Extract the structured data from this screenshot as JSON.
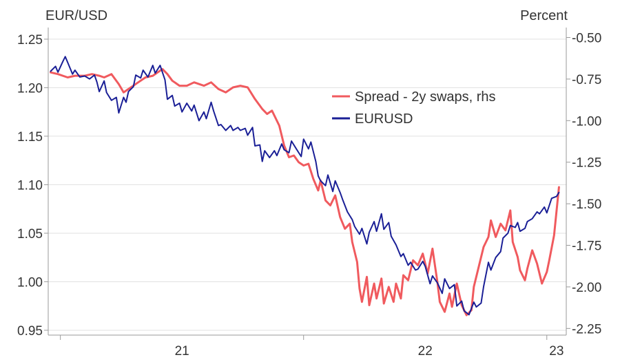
{
  "chart_data": {
    "type": "line",
    "left_axis_title": "EUR/USD",
    "right_axis_title": "Percent",
    "ylim_left": [
      0.945,
      1.262
    ],
    "ylim_right": [
      -2.29,
      -0.44
    ],
    "left_ticks": [
      {
        "value": 1.25,
        "label": "1.25"
      },
      {
        "value": 1.2,
        "label": "1.20"
      },
      {
        "value": 1.15,
        "label": "1.15"
      },
      {
        "value": 1.1,
        "label": "1.10"
      },
      {
        "value": 1.05,
        "label": "1.05"
      },
      {
        "value": 1.0,
        "label": "1.00"
      },
      {
        "value": 0.95,
        "label": "0.95"
      }
    ],
    "right_ticks": [
      {
        "value": -0.5,
        "label": "-0.50"
      },
      {
        "value": -0.75,
        "label": "-0.75"
      },
      {
        "value": -1.0,
        "label": "-1.00"
      },
      {
        "value": -1.25,
        "label": "-1.25"
      },
      {
        "value": -1.5,
        "label": "-1.50"
      },
      {
        "value": -1.75,
        "label": "-1.75"
      },
      {
        "value": -2.0,
        "label": "-2.00"
      },
      {
        "value": -2.25,
        "label": "-2.25"
      }
    ],
    "x_domain": [
      2020.95,
      2023.08
    ],
    "x_ticks": [
      2021,
      2022,
      2023
    ],
    "x_year_boundaries": [
      2021,
      2022,
      2023
    ],
    "x_tick_labels": [
      {
        "value": 2021.5,
        "label": "21"
      },
      {
        "value": 2022.5,
        "label": "22"
      },
      {
        "value": 2023.5,
        "label": "23"
      }
    ],
    "grid": true,
    "legend_position": "upper-right",
    "series": [
      {
        "name": "Spread - 2y swaps, rhs",
        "axis": "right",
        "color": "#f05a5e",
        "points": [
          [
            2020.96,
            -0.71
          ],
          [
            2020.99,
            -0.72
          ],
          [
            2021.03,
            -0.74
          ],
          [
            2021.06,
            -0.73
          ],
          [
            2021.1,
            -0.73
          ],
          [
            2021.13,
            -0.72
          ],
          [
            2021.16,
            -0.73
          ],
          [
            2021.18,
            -0.74
          ],
          [
            2021.21,
            -0.72
          ],
          [
            2021.24,
            -0.78
          ],
          [
            2021.26,
            -0.83
          ],
          [
            2021.29,
            -0.8
          ],
          [
            2021.32,
            -0.77
          ],
          [
            2021.35,
            -0.74
          ],
          [
            2021.38,
            -0.73
          ],
          [
            2021.4,
            -0.71
          ],
          [
            2021.42,
            -0.69
          ],
          [
            2021.44,
            -0.72
          ],
          [
            2021.46,
            -0.76
          ],
          [
            2021.49,
            -0.79
          ],
          [
            2021.52,
            -0.79
          ],
          [
            2021.55,
            -0.77
          ],
          [
            2021.59,
            -0.79
          ],
          [
            2021.62,
            -0.77
          ],
          [
            2021.65,
            -0.81
          ],
          [
            2021.68,
            -0.83
          ],
          [
            2021.71,
            -0.8
          ],
          [
            2021.74,
            -0.79
          ],
          [
            2021.77,
            -0.8
          ],
          [
            2021.8,
            -0.87
          ],
          [
            2021.83,
            -0.93
          ],
          [
            2021.85,
            -0.96
          ],
          [
            2021.87,
            -0.94
          ],
          [
            2021.9,
            -1.03
          ],
          [
            2021.92,
            -1.15
          ],
          [
            2021.94,
            -1.22
          ],
          [
            2021.96,
            -1.21
          ],
          [
            2021.98,
            -1.25
          ],
          [
            2022.0,
            -1.27
          ],
          [
            2022.02,
            -1.26
          ],
          [
            2022.04,
            -1.35
          ],
          [
            2022.06,
            -1.42
          ],
          [
            2022.07,
            -1.36
          ],
          [
            2022.09,
            -1.48
          ],
          [
            2022.11,
            -1.51
          ],
          [
            2022.13,
            -1.45
          ],
          [
            2022.15,
            -1.58
          ],
          [
            2022.17,
            -1.65
          ],
          [
            2022.19,
            -1.62
          ],
          [
            2022.2,
            -1.73
          ],
          [
            2022.22,
            -1.85
          ],
          [
            2022.23,
            -2.01
          ],
          [
            2022.24,
            -2.09
          ],
          [
            2022.26,
            -1.94
          ],
          [
            2022.27,
            -2.11
          ],
          [
            2022.29,
            -1.98
          ],
          [
            2022.3,
            -2.07
          ],
          [
            2022.32,
            -1.95
          ],
          [
            2022.33,
            -2.1
          ],
          [
            2022.35,
            -2.0
          ],
          [
            2022.37,
            -2.09
          ],
          [
            2022.38,
            -1.98
          ],
          [
            2022.4,
            -2.07
          ],
          [
            2022.41,
            -1.93
          ],
          [
            2022.43,
            -1.96
          ],
          [
            2022.45,
            -1.84
          ],
          [
            2022.47,
            -1.87
          ],
          [
            2022.49,
            -1.8
          ],
          [
            2022.51,
            -1.92
          ],
          [
            2022.53,
            -1.77
          ],
          [
            2022.55,
            -1.97
          ],
          [
            2022.56,
            -2.09
          ],
          [
            2022.58,
            -2.15
          ],
          [
            2022.6,
            -2.04
          ],
          [
            2022.61,
            -2.12
          ],
          [
            2022.63,
            -1.98
          ],
          [
            2022.65,
            -2.11
          ],
          [
            2022.67,
            -2.17
          ],
          [
            2022.69,
            -2.14
          ],
          [
            2022.7,
            -2.0
          ],
          [
            2022.72,
            -1.88
          ],
          [
            2022.74,
            -1.76
          ],
          [
            2022.76,
            -1.7
          ],
          [
            2022.77,
            -1.6
          ],
          [
            2022.79,
            -1.7
          ],
          [
            2022.81,
            -1.62
          ],
          [
            2022.83,
            -1.66
          ],
          [
            2022.85,
            -1.54
          ],
          [
            2022.86,
            -1.73
          ],
          [
            2022.88,
            -1.82
          ],
          [
            2022.89,
            -1.9
          ],
          [
            2022.91,
            -1.96
          ],
          [
            2022.92,
            -1.89
          ],
          [
            2022.94,
            -1.78
          ],
          [
            2022.96,
            -1.86
          ],
          [
            2022.98,
            -1.98
          ],
          [
            2023.0,
            -1.91
          ],
          [
            2023.01,
            -1.84
          ],
          [
            2023.03,
            -1.69
          ],
          [
            2023.05,
            -1.4
          ]
        ]
      },
      {
        "name": "EURUSD",
        "axis": "left",
        "color": "#1a1f96",
        "points": [
          [
            2020.96,
            1.217
          ],
          [
            2020.98,
            1.222
          ],
          [
            2020.99,
            1.216
          ],
          [
            2021.01,
            1.227
          ],
          [
            2021.02,
            1.232
          ],
          [
            2021.04,
            1.22
          ],
          [
            2021.05,
            1.214
          ],
          [
            2021.06,
            1.218
          ],
          [
            2021.08,
            1.211
          ],
          [
            2021.1,
            1.212
          ],
          [
            2021.12,
            1.209
          ],
          [
            2021.14,
            1.213
          ],
          [
            2021.15,
            1.206
          ],
          [
            2021.16,
            1.196
          ],
          [
            2021.18,
            1.207
          ],
          [
            2021.19,
            1.195
          ],
          [
            2021.21,
            1.187
          ],
          [
            2021.23,
            1.19
          ],
          [
            2021.24,
            1.174
          ],
          [
            2021.26,
            1.19
          ],
          [
            2021.27,
            1.185
          ],
          [
            2021.28,
            1.196
          ],
          [
            2021.3,
            1.201
          ],
          [
            2021.31,
            1.213
          ],
          [
            2021.33,
            1.21
          ],
          [
            2021.34,
            1.218
          ],
          [
            2021.36,
            1.211
          ],
          [
            2021.38,
            1.223
          ],
          [
            2021.39,
            1.215
          ],
          [
            2021.41,
            1.223
          ],
          [
            2021.43,
            1.208
          ],
          [
            2021.44,
            1.188
          ],
          [
            2021.46,
            1.192
          ],
          [
            2021.47,
            1.181
          ],
          [
            2021.49,
            1.184
          ],
          [
            2021.5,
            1.175
          ],
          [
            2021.52,
            1.184
          ],
          [
            2021.54,
            1.176
          ],
          [
            2021.55,
            1.182
          ],
          [
            2021.57,
            1.166
          ],
          [
            2021.59,
            1.175
          ],
          [
            2021.6,
            1.168
          ],
          [
            2021.62,
            1.185
          ],
          [
            2021.63,
            1.176
          ],
          [
            2021.65,
            1.161
          ],
          [
            2021.66,
            1.162
          ],
          [
            2021.68,
            1.156
          ],
          [
            2021.7,
            1.161
          ],
          [
            2021.71,
            1.156
          ],
          [
            2021.73,
            1.159
          ],
          [
            2021.74,
            1.156
          ],
          [
            2021.76,
            1.158
          ],
          [
            2021.77,
            1.151
          ],
          [
            2021.79,
            1.159
          ],
          [
            2021.8,
            1.14
          ],
          [
            2021.82,
            1.141
          ],
          [
            2021.83,
            1.124
          ],
          [
            2021.84,
            1.135
          ],
          [
            2021.86,
            1.128
          ],
          [
            2021.88,
            1.135
          ],
          [
            2021.89,
            1.13
          ],
          [
            2021.91,
            1.142
          ],
          [
            2021.92,
            1.136
          ],
          [
            2021.94,
            1.133
          ],
          [
            2021.95,
            1.145
          ],
          [
            2021.97,
            1.137
          ],
          [
            2021.99,
            1.129
          ],
          [
            2022.0,
            1.147
          ],
          [
            2022.02,
            1.137
          ],
          [
            2022.03,
            1.144
          ],
          [
            2022.05,
            1.124
          ],
          [
            2022.06,
            1.109
          ],
          [
            2022.07,
            1.104
          ],
          [
            2022.09,
            1.099
          ],
          [
            2022.1,
            1.11
          ],
          [
            2022.12,
            1.093
          ],
          [
            2022.13,
            1.104
          ],
          [
            2022.15,
            1.092
          ],
          [
            2022.16,
            1.085
          ],
          [
            2022.18,
            1.072
          ],
          [
            2022.2,
            1.064
          ],
          [
            2022.21,
            1.057
          ],
          [
            2022.23,
            1.049
          ],
          [
            2022.24,
            1.055
          ],
          [
            2022.26,
            1.039
          ],
          [
            2022.27,
            1.051
          ],
          [
            2022.29,
            1.062
          ],
          [
            2022.3,
            1.052
          ],
          [
            2022.32,
            1.07
          ],
          [
            2022.33,
            1.054
          ],
          [
            2022.35,
            1.061
          ],
          [
            2022.36,
            1.047
          ],
          [
            2022.38,
            1.038
          ],
          [
            2022.4,
            1.026
          ],
          [
            2022.41,
            1.029
          ],
          [
            2022.43,
            1.017
          ],
          [
            2022.44,
            1.02
          ],
          [
            2022.46,
            1.012
          ],
          [
            2022.47,
            1.013
          ],
          [
            2022.49,
            1.021
          ],
          [
            2022.5,
            1.016
          ],
          [
            2022.52,
            0.998
          ],
          [
            2022.53,
            1.006
          ],
          [
            2022.55,
            0.999
          ],
          [
            2022.57,
            0.988
          ],
          [
            2022.58,
            1.003
          ],
          [
            2022.6,
            0.993
          ],
          [
            2022.62,
            0.997
          ],
          [
            2022.63,
            0.975
          ],
          [
            2022.65,
            0.98
          ],
          [
            2022.66,
            0.97
          ],
          [
            2022.68,
            0.966
          ],
          [
            2022.7,
            0.979
          ],
          [
            2022.71,
            0.974
          ],
          [
            2022.73,
            0.978
          ],
          [
            2022.74,
            0.995
          ],
          [
            2022.76,
            1.02
          ],
          [
            2022.77,
            1.012
          ],
          [
            2022.79,
            1.025
          ],
          [
            2022.81,
            1.031
          ],
          [
            2022.82,
            1.045
          ],
          [
            2022.84,
            1.05
          ],
          [
            2022.85,
            1.058
          ],
          [
            2022.87,
            1.056
          ],
          [
            2022.88,
            1.061
          ],
          [
            2022.89,
            1.052
          ],
          [
            2022.91,
            1.055
          ],
          [
            2022.92,
            1.062
          ],
          [
            2022.94,
            1.065
          ],
          [
            2022.96,
            1.072
          ],
          [
            2022.97,
            1.07
          ],
          [
            2022.99,
            1.077
          ],
          [
            2023.0,
            1.071
          ],
          [
            2023.02,
            1.086
          ],
          [
            2023.04,
            1.088
          ],
          [
            2023.05,
            1.092
          ]
        ]
      }
    ]
  }
}
